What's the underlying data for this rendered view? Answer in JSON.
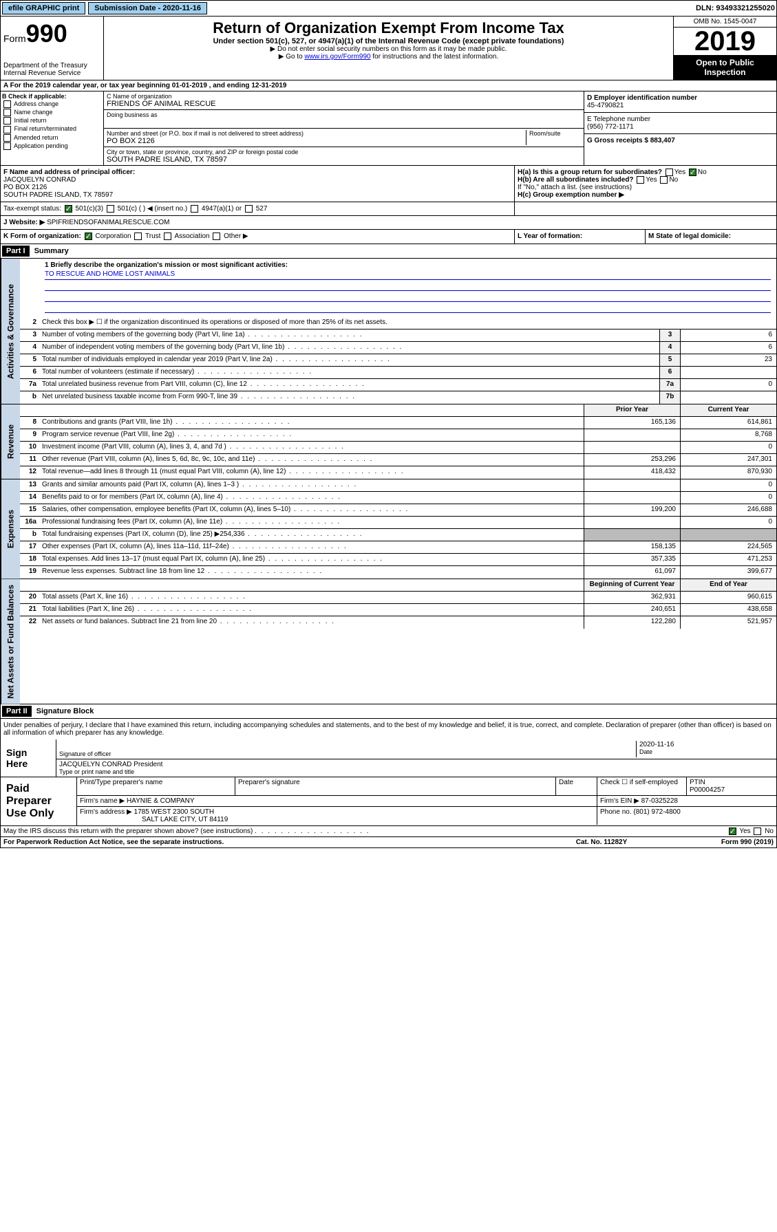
{
  "top": {
    "efile": "efile GRAPHIC print",
    "submission_label": "Submission Date - 2020-11-16",
    "dln_label": "DLN: 93493321255020"
  },
  "header": {
    "form_word": "Form",
    "form_num": "990",
    "dept": "Department of the Treasury",
    "irs": "Internal Revenue Service",
    "title": "Return of Organization Exempt From Income Tax",
    "subtitle": "Under section 501(c), 527, or 4947(a)(1) of the Internal Revenue Code (except private foundations)",
    "note1": "▶ Do not enter social security numbers on this form as it may be made public.",
    "note2_pre": "▶ Go to ",
    "note2_link": "www.irs.gov/Form990",
    "note2_post": " for instructions and the latest information.",
    "omb": "OMB No. 1545-0047",
    "year": "2019",
    "open": "Open to Public Inspection"
  },
  "section_a": {
    "line": "A For the 2019 calendar year, or tax year beginning 01-01-2019    , and ending 12-31-2019",
    "b_label": "B Check if applicable:",
    "b_items": [
      "Address change",
      "Name change",
      "Initial return",
      "Final return/terminated",
      "Amended return",
      "Application pending"
    ],
    "c_name_label": "C Name of organization",
    "c_name": "FRIENDS OF ANIMAL RESCUE",
    "dba_label": "Doing business as",
    "addr_label": "Number and street (or P.O. box if mail is not delivered to street address)",
    "room_label": "Room/suite",
    "addr": "PO BOX 2126",
    "city_label": "City or town, state or province, country, and ZIP or foreign postal code",
    "city": "SOUTH PADRE ISLAND, TX  78597",
    "d_label": "D Employer identification number",
    "d_val": "45-4790821",
    "e_label": "E Telephone number",
    "e_val": "(956) 772-1171",
    "g_label": "G Gross receipts $ 883,407",
    "f_label": "F Name and address of principal officer:",
    "f_name": "JACQUELYN CONRAD",
    "f_addr1": "PO BOX 2126",
    "f_addr2": "SOUTH PADRE ISLAND, TX  78597",
    "ha_label": "H(a) Is this a group return for subordinates?",
    "hb_label": "H(b) Are all subordinates included?",
    "hb_note": "If \"No,\" attach a list. (see instructions)",
    "hc_label": "H(c) Group exemption number ▶",
    "yes": "Yes",
    "no": "No",
    "tax_exempt_label": "Tax-exempt status:",
    "te_501c3": "501(c)(3)",
    "te_501c": "501(c) (  ) ◀ (insert no.)",
    "te_4947": "4947(a)(1) or",
    "te_527": "527",
    "website_label": "J   Website: ▶",
    "website": "SPIFRIENDSOFANIMALRESCUE.COM",
    "k_label": "K Form of organization:",
    "k_corp": "Corporation",
    "k_trust": "Trust",
    "k_assoc": "Association",
    "k_other": "Other ▶",
    "l_label": "L Year of formation:",
    "m_label": "M State of legal domicile:"
  },
  "part1": {
    "header": "Part I",
    "title": "Summary",
    "side_gov": "Activities & Governance",
    "side_rev": "Revenue",
    "side_exp": "Expenses",
    "side_net": "Net Assets or Fund Balances",
    "q1": "1  Briefly describe the organization's mission or most significant activities:",
    "mission": "TO RESCUE AND HOME LOST ANIMALS",
    "q2": "Check this box ▶ ☐  if the organization discontinued its operations or disposed of more than 25% of its net assets.",
    "lines_gov": [
      {
        "n": "3",
        "d": "Number of voting members of the governing body (Part VI, line 1a)",
        "b": "3",
        "v": "6"
      },
      {
        "n": "4",
        "d": "Number of independent voting members of the governing body (Part VI, line 1b)",
        "b": "4",
        "v": "6"
      },
      {
        "n": "5",
        "d": "Total number of individuals employed in calendar year 2019 (Part V, line 2a)",
        "b": "5",
        "v": "23"
      },
      {
        "n": "6",
        "d": "Total number of volunteers (estimate if necessary)",
        "b": "6",
        "v": ""
      },
      {
        "n": "7a",
        "d": "Total unrelated business revenue from Part VIII, column (C), line 12",
        "b": "7a",
        "v": "0"
      },
      {
        "n": "b",
        "d": "Net unrelated business taxable income from Form 990-T, line 39",
        "b": "7b",
        "v": ""
      }
    ],
    "col_prior": "Prior Year",
    "col_current": "Current Year",
    "lines_rev": [
      {
        "n": "8",
        "d": "Contributions and grants (Part VIII, line 1h)",
        "p": "165,136",
        "c": "614,861"
      },
      {
        "n": "9",
        "d": "Program service revenue (Part VIII, line 2g)",
        "p": "",
        "c": "8,768"
      },
      {
        "n": "10",
        "d": "Investment income (Part VIII, column (A), lines 3, 4, and 7d )",
        "p": "",
        "c": "0"
      },
      {
        "n": "11",
        "d": "Other revenue (Part VIII, column (A), lines 5, 6d, 8c, 9c, 10c, and 11e)",
        "p": "253,296",
        "c": "247,301"
      },
      {
        "n": "12",
        "d": "Total revenue—add lines 8 through 11 (must equal Part VIII, column (A), line 12)",
        "p": "418,432",
        "c": "870,930"
      }
    ],
    "lines_exp": [
      {
        "n": "13",
        "d": "Grants and similar amounts paid (Part IX, column (A), lines 1–3 )",
        "p": "",
        "c": "0"
      },
      {
        "n": "14",
        "d": "Benefits paid to or for members (Part IX, column (A), line 4)",
        "p": "",
        "c": "0"
      },
      {
        "n": "15",
        "d": "Salaries, other compensation, employee benefits (Part IX, column (A), lines 5–10)",
        "p": "199,200",
        "c": "246,688"
      },
      {
        "n": "16a",
        "d": "Professional fundraising fees (Part IX, column (A), line 11e)",
        "p": "",
        "c": "0"
      },
      {
        "n": "b",
        "d": "Total fundraising expenses (Part IX, column (D), line 25) ▶254,336",
        "p": "shade",
        "c": "shade"
      },
      {
        "n": "17",
        "d": "Other expenses (Part IX, column (A), lines 11a–11d, 11f–24e)",
        "p": "158,135",
        "c": "224,565"
      },
      {
        "n": "18",
        "d": "Total expenses. Add lines 13–17 (must equal Part IX, column (A), line 25)",
        "p": "357,335",
        "c": "471,253"
      },
      {
        "n": "19",
        "d": "Revenue less expenses. Subtract line 18 from line 12",
        "p": "61,097",
        "c": "399,677"
      }
    ],
    "col_begin": "Beginning of Current Year",
    "col_end": "End of Year",
    "lines_net": [
      {
        "n": "20",
        "d": "Total assets (Part X, line 16)",
        "p": "362,931",
        "c": "960,615"
      },
      {
        "n": "21",
        "d": "Total liabilities (Part X, line 26)",
        "p": "240,651",
        "c": "438,658"
      },
      {
        "n": "22",
        "d": "Net assets or fund balances. Subtract line 21 from line 20",
        "p": "122,280",
        "c": "521,957"
      }
    ]
  },
  "part2": {
    "header": "Part II",
    "title": "Signature Block",
    "declaration": "Under penalties of perjury, I declare that I have examined this return, including accompanying schedules and statements, and to the best of my knowledge and belief, it is true, correct, and complete. Declaration of preparer (other than officer) is based on all information of which preparer has any knowledge.",
    "sign_here": "Sign Here",
    "sig_officer": "Signature of officer",
    "sig_date": "2020-11-16",
    "date_label": "Date",
    "officer_name": "JACQUELYN CONRAD  President",
    "name_title_label": "Type or print name and title",
    "paid_prep": "Paid Preparer Use Only",
    "prep_name_label": "Print/Type preparer's name",
    "prep_sig_label": "Preparer's signature",
    "prep_date_label": "Date",
    "check_self": "Check ☐ if self-employed",
    "ptin_label": "PTIN",
    "ptin": "P00004257",
    "firm_name_label": "Firm's name    ▶",
    "firm_name": "HAYNIE & COMPANY",
    "firm_ein_label": "Firm's EIN ▶",
    "firm_ein": "87-0325228",
    "firm_addr_label": "Firm's address ▶",
    "firm_addr1": "1785 WEST 2300 SOUTH",
    "firm_addr2": "SALT LAKE CITY, UT  84119",
    "phone_label": "Phone no.",
    "phone": "(801) 972-4800",
    "discuss": "May the IRS discuss this return with the preparer shown above? (see instructions)",
    "paperwork": "For Paperwork Reduction Act Notice, see the separate instructions.",
    "cat": "Cat. No. 11282Y",
    "form_foot": "Form 990 (2019)"
  }
}
